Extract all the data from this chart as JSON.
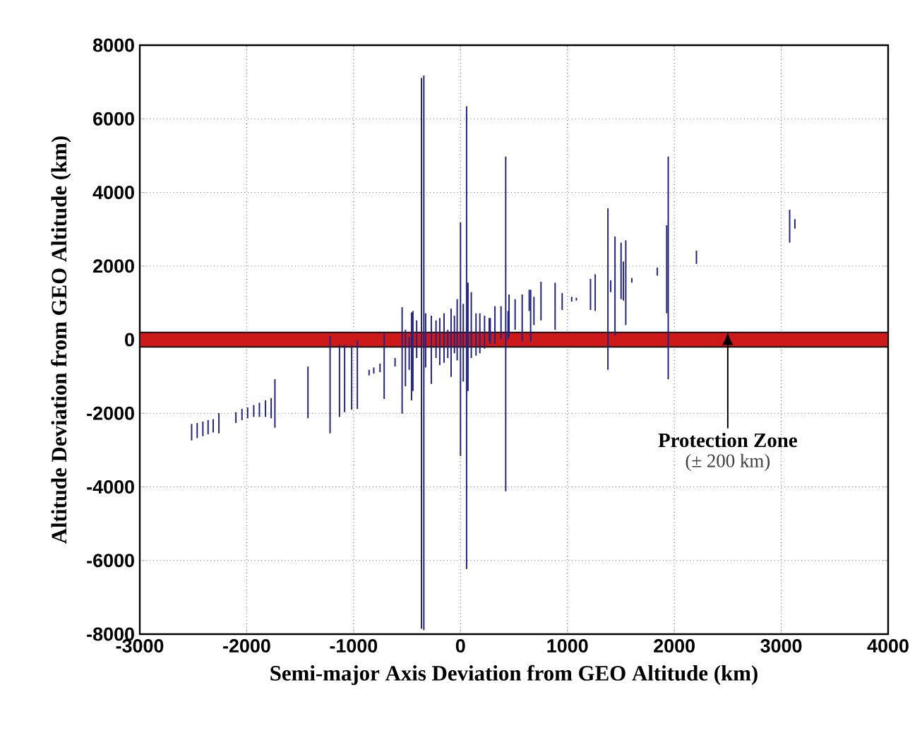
{
  "chart_data": {
    "type": "bar",
    "xlabel": "Semi-major Axis Deviation from GEO Altitude (km)",
    "ylabel": "Altitude Deviation from GEO Altitude (km)",
    "x": [
      -2515,
      -2463,
      -2410,
      -2361,
      -2313,
      -2260,
      -2101,
      -2044,
      -1991,
      -1934,
      -1881,
      -1824,
      -1771,
      -1736,
      -1427,
      -1220,
      -1132,
      -1084,
      -1018,
      -965,
      -855,
      -811,
      -753,
      -714,
      -612,
      -546,
      -515,
      -480,
      -458,
      -445,
      -410,
      -365,
      -343,
      -326,
      -273,
      -229,
      -194,
      -154,
      -119,
      -88,
      -57,
      -31,
      0,
      26,
      57,
      70,
      101,
      145,
      181,
      225,
      269,
      278,
      322,
      379,
      423,
      445,
      454,
      511,
      577,
      643,
      656,
      687,
      753,
      885,
      951,
      1040,
      1084,
      1216,
      1260,
      1379,
      1405,
      1445,
      1502,
      1524,
      1546,
      1603,
      1841,
      1929,
      1943,
      2207,
      3079,
      3128
    ],
    "base": [
      -2737,
      -2673,
      -2622,
      -2571,
      -2520,
      -2545,
      -2264,
      -2187,
      -2136,
      -2098,
      -2098,
      -2098,
      -2136,
      -2392,
      -2135,
      -2545,
      -2100,
      -1970,
      -1905,
      -1880,
      -972,
      -921,
      -883,
      -1610,
      -729,
      -2010,
      -1266,
      -819,
      -1650,
      -1394,
      -499,
      -7850,
      -7890,
      -755,
      -1202,
      -499,
      -691,
      -627,
      -499,
      -1010,
      -371,
      -563,
      -3160,
      -1138,
      -6230,
      -1394,
      -499,
      -435,
      -371,
      -243,
      -51,
      -115,
      -115,
      13,
      -4120,
      13,
      77,
      269,
      -51,
      780,
      -51,
      397,
      524,
      269,
      806,
      1036,
      1062,
      806,
      780,
      -819,
      1292,
      115,
      1100,
      1062,
      397,
      1548,
      1740,
      716,
      -1074,
      2059,
      2635,
      3018
    ],
    "values": [
      447,
      409,
      397,
      384,
      358,
      550,
      294,
      307,
      294,
      320,
      384,
      448,
      550,
      1318,
      1405,
      2645,
      1960,
      1830,
      1755,
      1855,
      153,
      166,
      231,
      1775,
      230,
      2890,
      1535,
      896,
      2390,
      2174,
      1023,
      14960,
      15065,
      1471,
      1854,
      1023,
      1279,
      1343,
      768,
      1854,
      1023,
      1663,
      6345,
      2110,
      12570,
      2942,
      1791,
      1151,
      1087,
      895,
      639,
      703,
      1023,
      895,
      9095,
      767,
      1151,
      831,
      1279,
      576,
      1407,
      767,
      1050,
      1279,
      460,
      128,
      76,
      844,
      998,
      4387,
      320,
      2686,
      1535,
      1061,
      2302,
      128,
      217,
      2392,
      6049,
      358,
      895,
      256
    ],
    "color": "#24247f",
    "xlim": [
      -3000,
      4000
    ],
    "xticks": [
      -3000,
      -2000,
      -1000,
      0,
      1000,
      2000,
      3000,
      4000
    ],
    "ylim": [
      -8000,
      8000
    ],
    "yticks": [
      -8000,
      -6000,
      -4000,
      -2000,
      0,
      2000,
      4000,
      6000,
      8000
    ],
    "grid": true,
    "bands": [
      {
        "axis": "y",
        "from": -200,
        "to": 200,
        "color": "#cc1a1a"
      }
    ],
    "annotations": [
      {
        "text": "Protection Zone",
        "x": 2500,
        "y": 200
      },
      "(± 200 km)"
    ]
  }
}
